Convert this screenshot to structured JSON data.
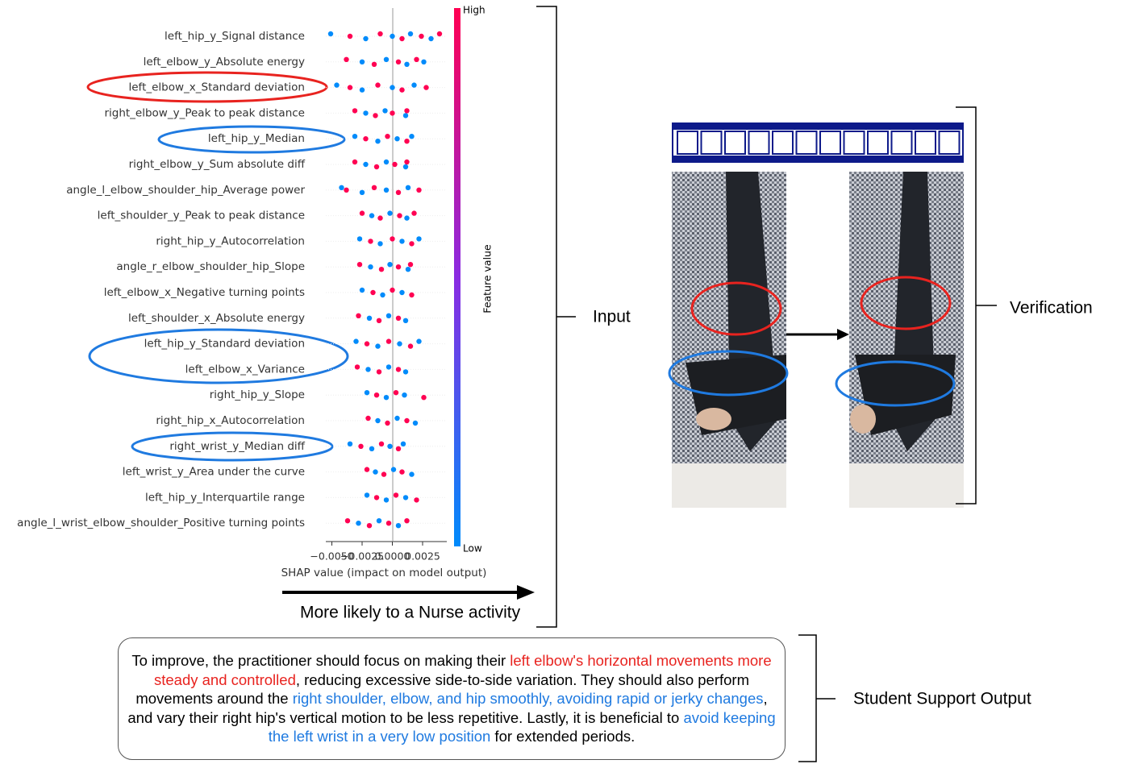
{
  "shap_plot": {
    "features": [
      "left_hip_y_Signal distance",
      "left_elbow_y_Absolute energy",
      "left_elbow_x_Standard deviation",
      "right_elbow_y_Peak to peak distance",
      "left_hip_y_Median",
      "right_elbow_y_Sum absolute diff",
      "angle_l_elbow_shoulder_hip_Average power",
      "left_shoulder_y_Peak to peak distance",
      "right_hip_y_Autocorrelation",
      "angle_r_elbow_shoulder_hip_Slope",
      "left_elbow_x_Negative turning points",
      "left_shoulder_x_Absolute energy",
      "left_hip_y_Standard deviation",
      "left_elbow_x_Variance",
      "right_hip_y_Slope",
      "right_hip_x_Autocorrelation",
      "right_wrist_y_Median diff",
      "left_wrist_y_Area under the curve",
      "left_hip_y_Interquartile range",
      "angle_l_wrist_elbow_shoulder_Positive turning points"
    ],
    "values": [
      [
        -0.0051,
        -0.0035,
        -0.0022,
        -0.001,
        0.0,
        0.0008,
        0.0015,
        0.0024,
        0.0032,
        0.0039
      ],
      [
        -0.0038,
        -0.0025,
        -0.0015,
        -0.0005,
        0.0005,
        0.0012,
        0.002,
        0.0026
      ],
      [
        -0.0046,
        -0.0035,
        -0.0025,
        -0.0012,
        0.0,
        0.0008,
        0.0018,
        0.0028
      ],
      [
        -0.0031,
        -0.0022,
        -0.0014,
        -0.0006,
        0.0,
        0.0011,
        0.0012
      ],
      [
        -0.0031,
        -0.0022,
        -0.0012,
        -0.0004,
        0.0004,
        0.0012,
        0.0016
      ],
      [
        -0.0031,
        -0.0022,
        -0.0013,
        -0.0005,
        0.0002,
        0.0011,
        0.0012
      ],
      [
        -0.0042,
        -0.0038,
        -0.0025,
        -0.0015,
        -0.0005,
        0.0005,
        0.0013,
        0.0022
      ],
      [
        -0.0025,
        -0.0017,
        -0.001,
        -0.0002,
        0.0006,
        0.0012,
        0.0018
      ],
      [
        -0.0027,
        -0.0018,
        -0.001,
        0.0,
        0.0008,
        0.0016,
        0.0022
      ],
      [
        -0.0027,
        -0.0018,
        -0.0009,
        -0.0002,
        0.0005,
        0.0013,
        0.0015
      ],
      [
        -0.0025,
        -0.0016,
        -0.0008,
        0.0,
        0.0008,
        0.0016
      ],
      [
        -0.0028,
        -0.0019,
        -0.0011,
        -0.0003,
        0.0005,
        0.0011
      ],
      [
        -0.003,
        -0.0021,
        -0.0012,
        -0.0003,
        0.0006,
        0.0015,
        0.0022
      ],
      [
        -0.0029,
        -0.002,
        -0.0011,
        -0.0003,
        0.0005,
        0.0011
      ],
      [
        -0.0021,
        -0.0013,
        -0.0005,
        0.0003,
        0.001,
        0.0026
      ],
      [
        -0.002,
        -0.0012,
        -0.0004,
        0.0004,
        0.0012,
        0.0019
      ],
      [
        -0.0035,
        -0.0026,
        -0.0017,
        -0.0009,
        -0.0002,
        0.0005,
        0.0009
      ],
      [
        -0.0021,
        -0.0014,
        -0.0007,
        0.0001,
        0.0008,
        0.0016
      ],
      [
        -0.0021,
        -0.0013,
        -0.0005,
        0.0003,
        0.0011,
        0.002
      ],
      [
        -0.0037,
        -0.0028,
        -0.0019,
        -0.0011,
        -0.0003,
        0.0005,
        0.0012
      ]
    ],
    "xlim": [
      -0.0055,
      0.0045
    ],
    "xticks": [
      {
        "value": -0.005,
        "label": "−0.0050"
      },
      {
        "value": -0.0025,
        "label": "−0.0025"
      },
      {
        "value": 0,
        "label": "0.0000"
      },
      {
        "value": 0.0025,
        "label": "0.0025"
      }
    ],
    "xlabel": "SHAP value (impact on model output)",
    "colorbar": {
      "label": "Feature value",
      "high": "High",
      "low": "Low",
      "high_color": "#ff0052",
      "low_color": "#008bfb"
    }
  },
  "arrow_label": "More likely to a Nurse activity",
  "labels": {
    "input": "Input",
    "verification": "Verification",
    "output": "Student Support Output"
  },
  "output_text": [
    {
      "text": "To improve, the practitioner should focus on making their ",
      "color": "#000000"
    },
    {
      "text": "left elbow's horizontal movements more steady and controlled",
      "color": "#e8231f"
    },
    {
      "text": ", reducing excessive side-to-side variation. They should also perform movements around the ",
      "color": "#000000"
    },
    {
      "text": "right shoulder, elbow, and hip smoothly, avoiding rapid or jerky changes",
      "color": "#1f7ae0"
    },
    {
      "text": ", and vary their right hip's vertical motion to be less repetitive. Lastly, it is beneficial to ",
      "color": "#000000"
    },
    {
      "text": "avoid keeping the left wrist in a very low position",
      "color": "#1f7ae0"
    },
    {
      "text": " for extended periods.",
      "color": "#000000"
    }
  ]
}
